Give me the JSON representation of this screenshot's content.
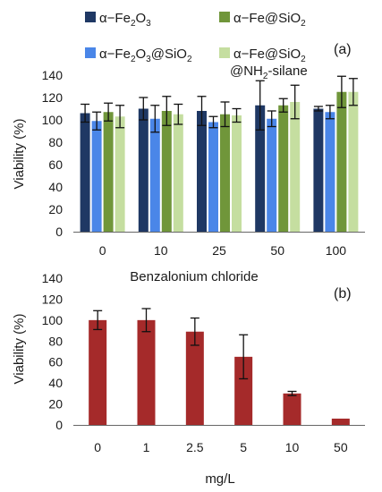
{
  "chart_data": [
    {
      "type": "bar",
      "panel_label": "(a)",
      "categories": [
        "0",
        "10",
        "25",
        "50",
        "100"
      ],
      "ylabel": "Viability (%)",
      "xlabel": "",
      "ylim": [
        0,
        140
      ],
      "yticks": [
        "0",
        "20",
        "40",
        "60",
        "80",
        "100",
        "120",
        "140"
      ],
      "grid": false,
      "legend_placement": "top",
      "series": [
        {
          "name": "α−Fe2O3",
          "color": "#1f3864",
          "values": [
            106,
            110,
            108,
            113,
            110
          ],
          "errors": [
            8,
            10,
            13,
            22,
            2
          ]
        },
        {
          "name": "α−Fe2O3@SiO2",
          "color": "#4a86e8",
          "values": [
            99,
            101,
            98,
            101,
            107
          ],
          "errors": [
            8,
            12,
            5,
            7,
            6
          ]
        },
        {
          "name": "α−Fe@SiO2",
          "color": "#70963a",
          "values": [
            107,
            108,
            105,
            113,
            125
          ],
          "errors": [
            8,
            13,
            11,
            6,
            14
          ]
        },
        {
          "name": "α−Fe@SiO2 @NH2-silane",
          "color": "#c5dea0",
          "values": [
            103,
            105,
            104,
            116,
            125
          ],
          "errors": [
            10,
            9,
            6,
            15,
            12
          ]
        }
      ]
    },
    {
      "type": "bar",
      "panel_label": "(b)",
      "title": "Benzalonium chloride",
      "categories": [
        "0",
        "1",
        "2.5",
        "5",
        "10",
        "50"
      ],
      "xlabel": "mg/L",
      "ylabel": "Viability (%)",
      "ylim": [
        0,
        140
      ],
      "yticks": [
        "0",
        "20",
        "40",
        "60",
        "80",
        "100",
        "120",
        "140"
      ],
      "grid": false,
      "series": [
        {
          "color": "#a52a2a",
          "values": [
            100,
            100,
            89,
            65,
            30,
            6
          ],
          "errors": [
            9,
            11,
            13,
            21,
            2,
            0
          ]
        }
      ]
    }
  ],
  "legend": {
    "items": [
      {
        "pre": "α−Fe",
        "sub1": "2",
        "mid": "O",
        "sub2": "3",
        "post": "",
        "color": "#1f3864"
      },
      {
        "pre": "α−Fe@SiO",
        "sub1": "2",
        "mid": "",
        "sub2": "",
        "post": "",
        "color": "#70963a"
      },
      {
        "pre": "α−Fe",
        "sub1": "2",
        "mid": "O",
        "sub2": "3",
        "post": "@SiO",
        "sub3": "2",
        "color": "#4a86e8"
      },
      {
        "pre": "α−Fe@SiO",
        "sub1": "2",
        "mid": "",
        "sub2": "",
        "post": "",
        "color": "#c5dea0"
      }
    ],
    "extra_line": {
      "pre": "@NH",
      "sub": "2",
      "post": "-silane"
    }
  }
}
